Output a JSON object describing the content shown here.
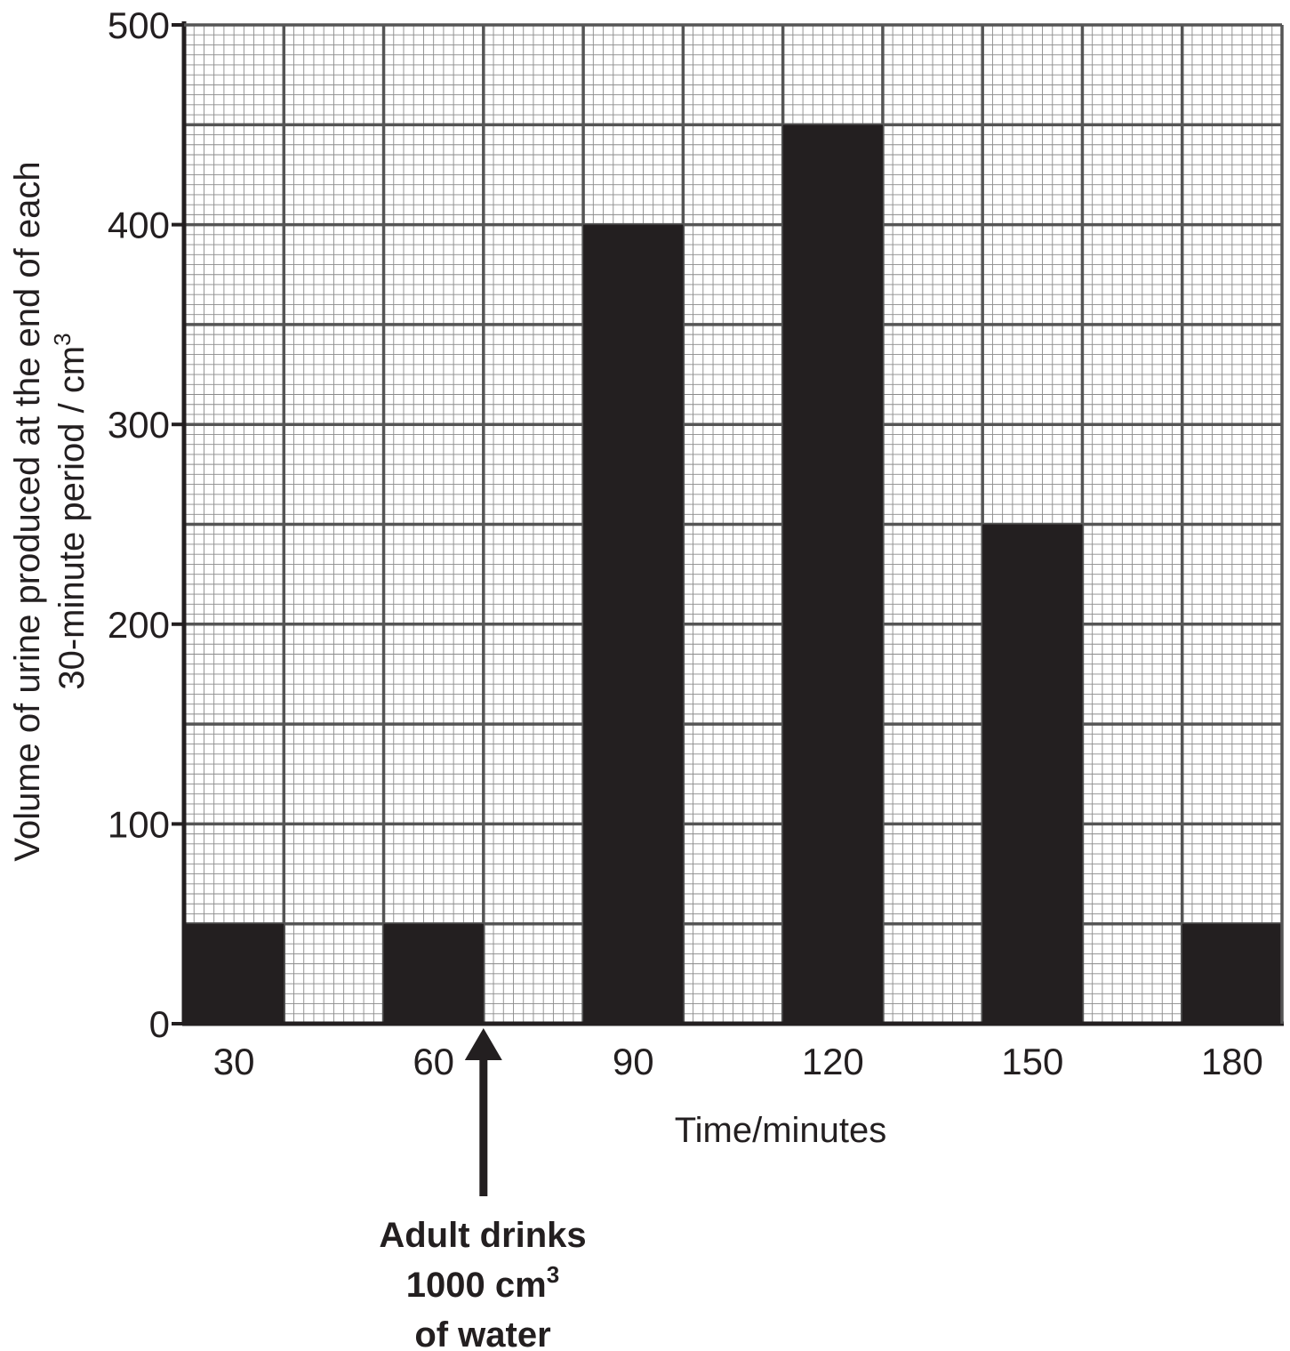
{
  "chart_data": {
    "type": "bar",
    "x": [
      30,
      45,
      60,
      75,
      90,
      105,
      120,
      135,
      150,
      165,
      180
    ],
    "values": [
      50,
      0,
      50,
      0,
      400,
      0,
      450,
      0,
      250,
      0,
      50
    ],
    "xlabel": "Time/minutes",
    "ylabel_line1": "Volume of urine produced at the end of each",
    "ylabel_line2": "30-minute period / cm",
    "ylabel_unit_sup": "3",
    "ylim": [
      0,
      500
    ],
    "yticks": [
      0,
      100,
      200,
      300,
      400,
      500
    ],
    "xtick_labels": [
      "30",
      "60",
      "90",
      "120",
      "150",
      "180"
    ],
    "grid": true,
    "annotation": {
      "line1": "Adult drinks",
      "line2": "1000 cm",
      "line2_sup": "3",
      "line3": "of water",
      "at_x": 67.5
    }
  }
}
